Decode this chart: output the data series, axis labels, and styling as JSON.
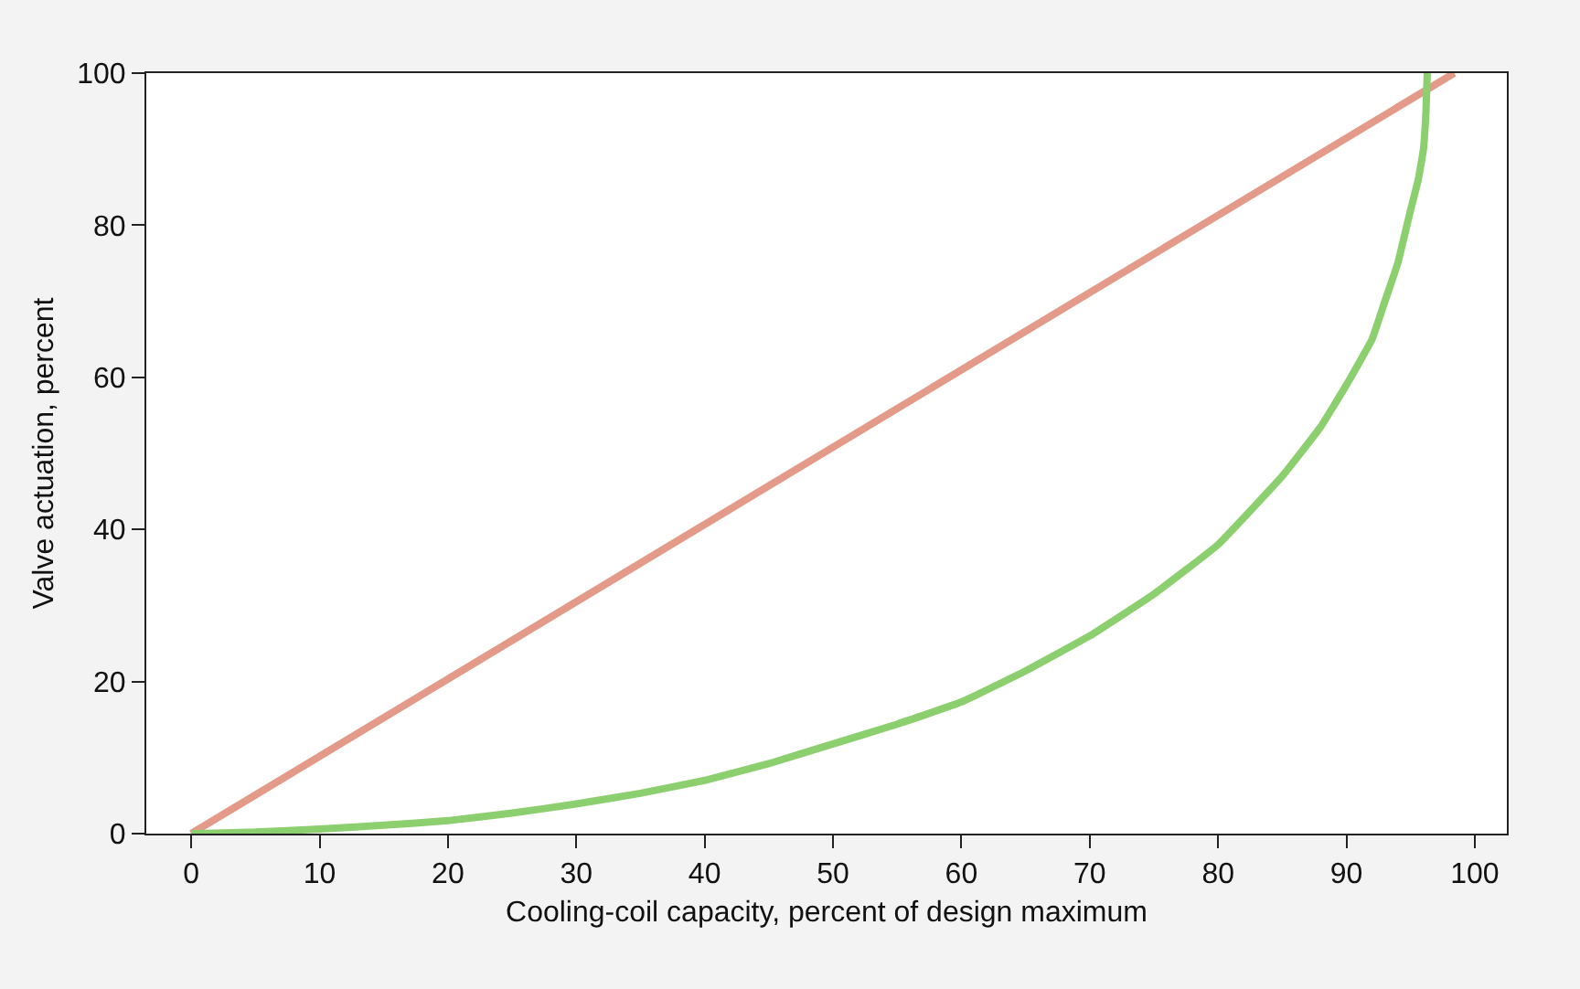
{
  "chart_data": {
    "type": "line",
    "xlabel": "Cooling-coil capacity, percent of design maximum",
    "ylabel": "Valve actuation, percent",
    "series": [
      {
        "color": "#e39a88",
        "x": [
          0,
          98.4
        ],
        "values": [
          0,
          100
        ]
      },
      {
        "color": "#8ccf6e",
        "x": [
          0,
          5,
          10,
          15,
          20,
          25,
          30,
          35,
          40,
          45,
          50,
          55,
          60,
          65,
          70,
          75,
          80,
          85,
          88,
          90,
          92,
          93,
          94,
          95,
          95.6,
          96,
          96.2,
          96.3
        ],
        "values": [
          0,
          0.2,
          0.6,
          1.1,
          1.7,
          2.7,
          3.9,
          5.3,
          7,
          9.2,
          11.8,
          14.4,
          17.3,
          21.4,
          26,
          31.5,
          38,
          47,
          53.5,
          59,
          65,
          70,
          75,
          82,
          86,
          90,
          95,
          100
        ]
      }
    ],
    "xlim": [
      -3.5,
      102.5
    ],
    "xticks": [
      0,
      10,
      20,
      30,
      40,
      50,
      60,
      70,
      80,
      90,
      100
    ],
    "ylim": [
      0,
      100
    ],
    "yticks": [
      0,
      20,
      40,
      60,
      80,
      100
    ],
    "grid": false,
    "marker": "none",
    "line_style": "solid"
  }
}
